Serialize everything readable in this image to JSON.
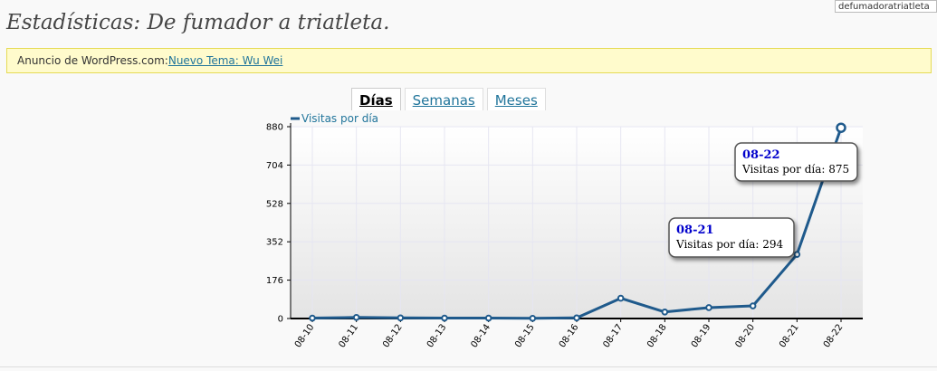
{
  "header": {
    "title": "Estadísticas: De fumador a triatleta.",
    "blog_selector": "defumadoratriatleta"
  },
  "notice": {
    "prefix": "Anuncio de WordPress.com:",
    "link": "Nuevo Tema: Wu Wei"
  },
  "tabs": [
    {
      "label": "Días",
      "active": true
    },
    {
      "label": "Semanas",
      "active": false
    },
    {
      "label": "Meses",
      "active": false
    }
  ],
  "colors": {
    "series": "#1f5a8c",
    "link": "#21759b"
  },
  "chart_data": {
    "type": "line",
    "title": "",
    "xlabel": "",
    "ylabel": "",
    "legend": "top-left",
    "grid": true,
    "ylim": [
      0,
      880
    ],
    "yticks": [
      "0",
      "176",
      "352",
      "528",
      "704",
      "880"
    ],
    "x": [
      "08-10",
      "08-11",
      "08-12",
      "08-13",
      "08-14",
      "08-15",
      "08-16",
      "08-17",
      "08-18",
      "08-19",
      "08-20",
      "08-21",
      "08-22"
    ],
    "series": [
      {
        "name": "Visitas por día",
        "values": [
          2,
          5,
          3,
          2,
          2,
          1,
          3,
          93,
          30,
          50,
          58,
          294,
          875
        ]
      }
    ],
    "tooltips": [
      {
        "date": "08-21",
        "text": "Visitas por día: 294",
        "index": 11
      },
      {
        "date": "08-22",
        "text": "Visitas por día: 875",
        "index": 12
      }
    ]
  }
}
